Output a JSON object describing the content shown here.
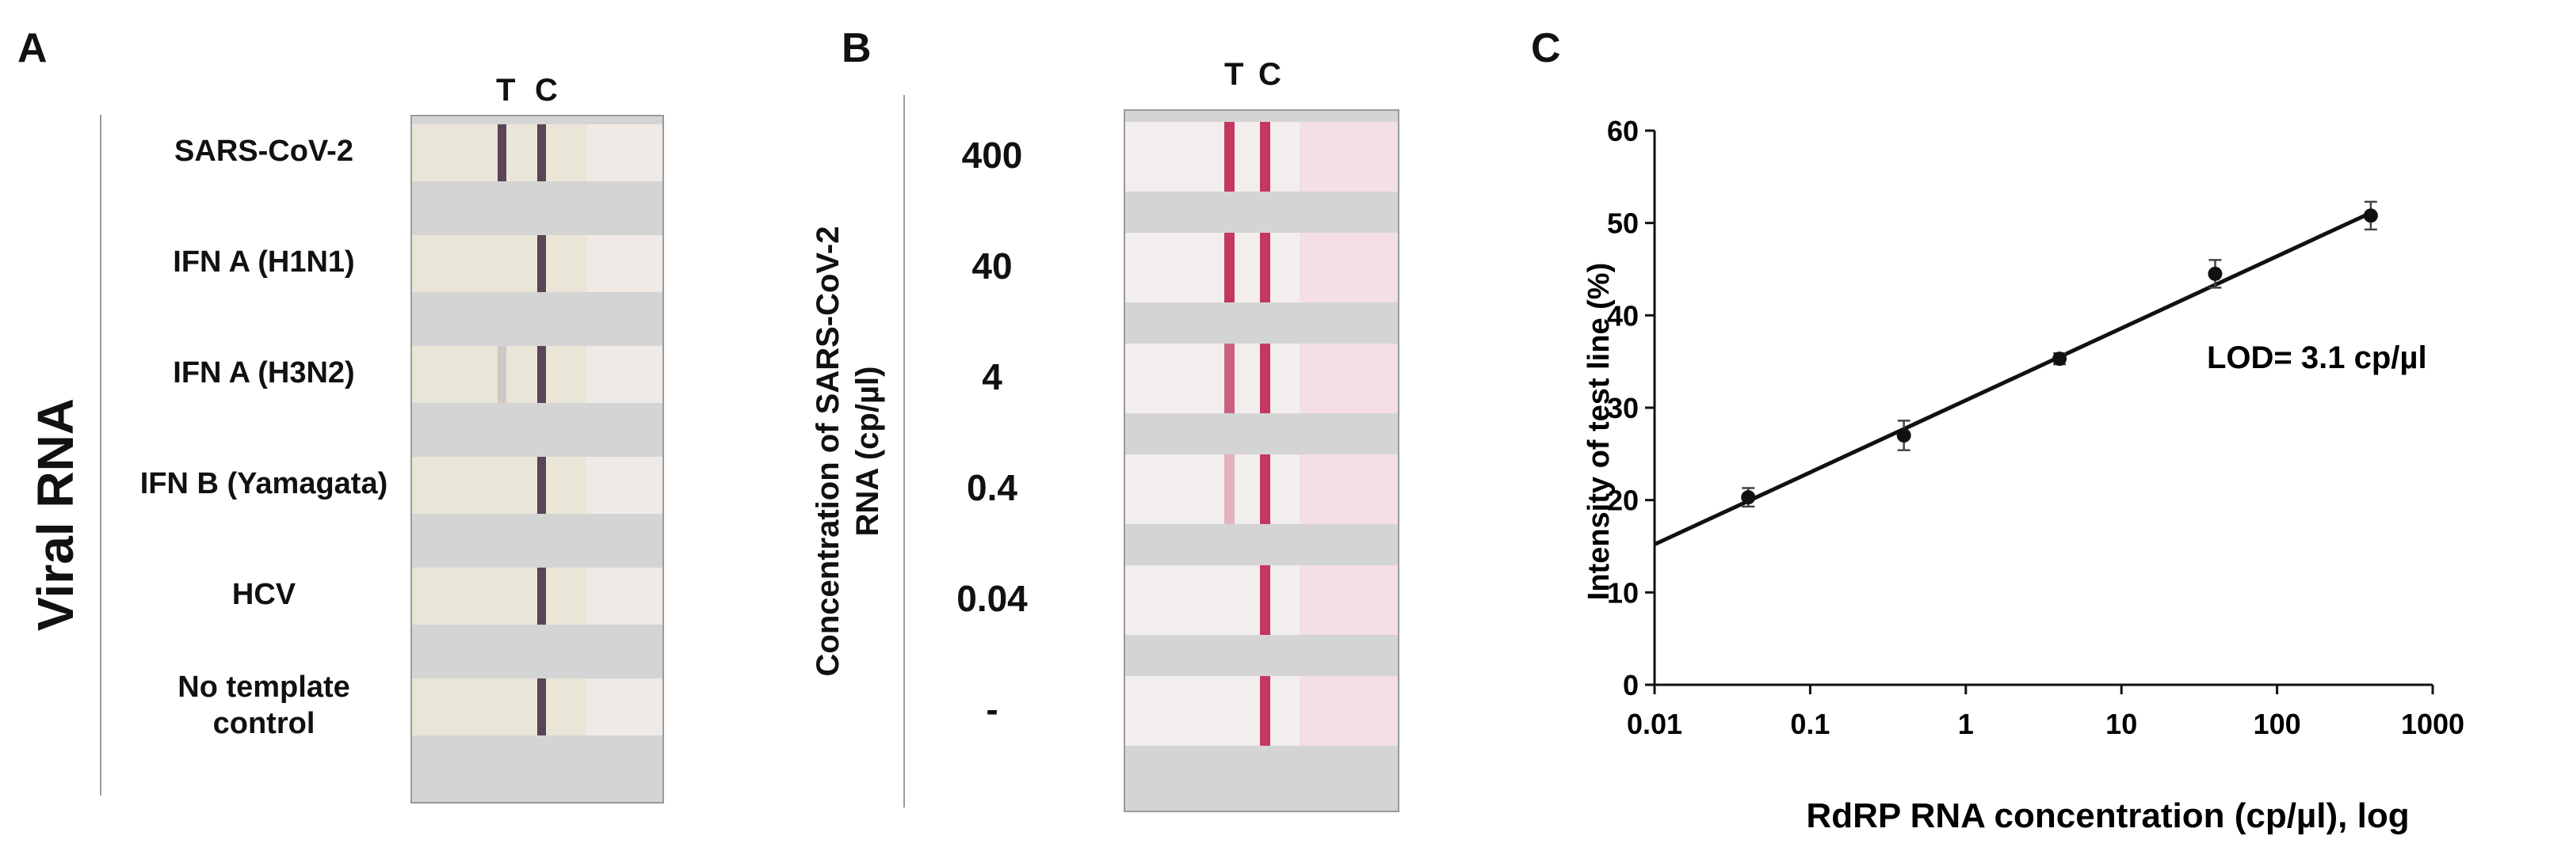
{
  "panel_a": {
    "letter": "A",
    "side_label": "Viral RNA",
    "header_t": "T",
    "header_c": "C",
    "lanes": [
      {
        "label": "SARS-CoV-2",
        "test_line": "dark"
      },
      {
        "label": "IFN A (H1N1)",
        "test_line": "none"
      },
      {
        "label": "IFN A (H3N2)",
        "test_line": "trace"
      },
      {
        "label": "IFN B (Yamagata)",
        "test_line": "none"
      },
      {
        "label": "HCV",
        "test_line": "none"
      },
      {
        "label": "No template\ncontrol",
        "test_line": "none"
      }
    ]
  },
  "panel_b": {
    "letter": "B",
    "side_label_line1": "Concentration of SARS-CoV-2",
    "side_label_line2": "RNA (cp/µl)",
    "header_t": "T",
    "header_c": "C",
    "lanes": [
      {
        "label": "400",
        "test_line": "strong"
      },
      {
        "label": "40",
        "test_line": "strong"
      },
      {
        "label": "4",
        "test_line": "medium"
      },
      {
        "label": "0.4",
        "test_line": "faint"
      },
      {
        "label": "0.04",
        "test_line": "none"
      },
      {
        "label": "-",
        "test_line": "none"
      }
    ]
  },
  "panel_c": {
    "letter": "C",
    "annotation": "LOD= 3.1 cp/µl",
    "colors": {
      "ink": "#111111",
      "control_line_a": "#5a4455",
      "control_line_b": "#c4375f"
    }
  },
  "chart_data": {
    "type": "scatter",
    "title": "",
    "xlabel": "RdRP RNA concentration (cp/µl), log",
    "ylabel": "Intensity of test line (%)",
    "x_scale": "log",
    "xlim": [
      0.01,
      1000
    ],
    "ylim": [
      0,
      60
    ],
    "x_ticks": [
      "0.01",
      "0.1",
      "1",
      "10",
      "100",
      "1000"
    ],
    "y_ticks": [
      "0",
      "10",
      "20",
      "30",
      "40",
      "50",
      "60"
    ],
    "grid": false,
    "series": [
      {
        "x": [
          0.04,
          0.4,
          4,
          40,
          400
        ],
        "y": [
          20.3,
          27.0,
          35.3,
          44.5,
          50.8
        ],
        "error": [
          1.0,
          1.6,
          0.6,
          1.5,
          1.5
        ]
      }
    ],
    "fit_line": {
      "x": [
        0.01,
        400
      ],
      "y": [
        15.2,
        51.1
      ]
    },
    "annotation": "LOD= 3.1 cp/µl"
  }
}
